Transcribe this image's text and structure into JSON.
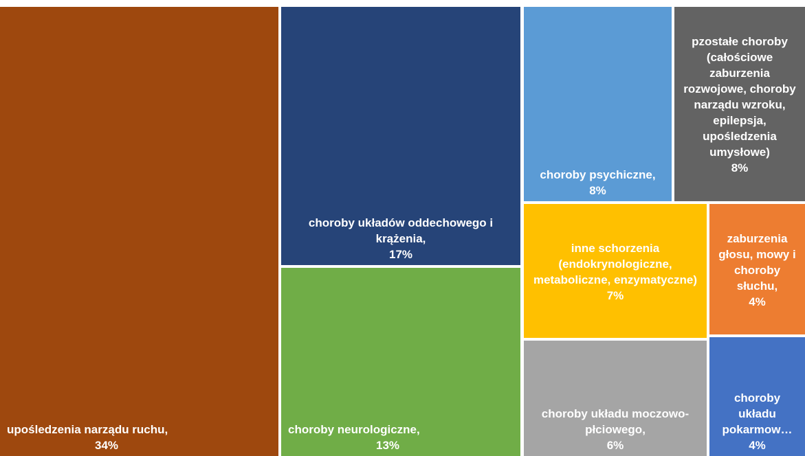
{
  "chart_data": {
    "type": "treemap",
    "categories": [
      "upośledzenia narządu ruchu,",
      "choroby układów oddechowego i krążenia,",
      "choroby neurologiczne,",
      "choroby psychiczne,",
      "pzostałe choroby (całościowe zaburzenia rozwojowe, choroby narządu wzroku, epilepsja, upośledzenia umysłowe)",
      "inne schorzenia (endokrynologiczne, metaboliczne, enzymatyczne)",
      "zaburzenia głosu, mowy i choroby słuchu,",
      "choroby układu moczowo-płciowego,",
      "choroby układu pokarmow…"
    ],
    "values": [
      34,
      17,
      13,
      8,
      8,
      7,
      4,
      6,
      4
    ],
    "value_labels": [
      "34%",
      "17%",
      "13%",
      "8%",
      "8%",
      "7%",
      "4%",
      "6%",
      "4%"
    ],
    "colors": [
      "#9e480e",
      "#264478",
      "#70ad47",
      "#5b9bd5",
      "#636363",
      "#ffc000",
      "#ed7d31",
      "#a5a5a5",
      "#4472c4"
    ]
  }
}
